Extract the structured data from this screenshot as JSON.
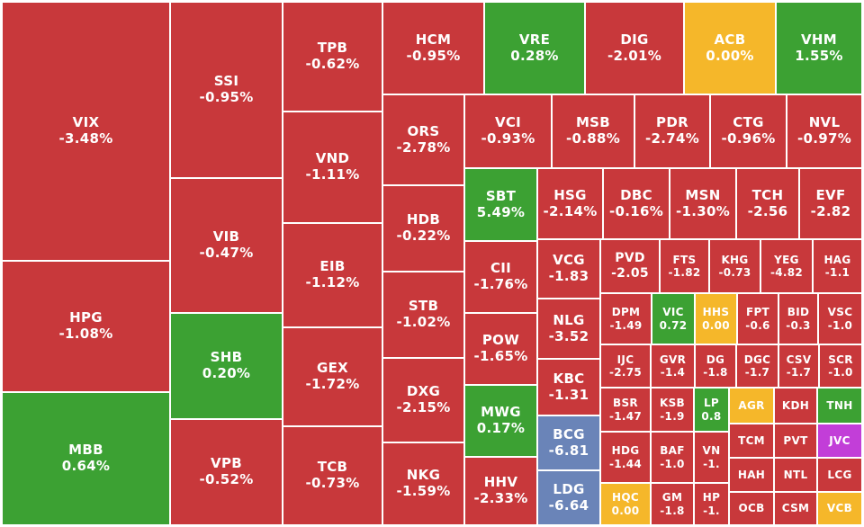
{
  "chart_data": {
    "type": "treemap",
    "colors": {
      "down": "#c8383b",
      "up": "#3ca133",
      "flat": "#f5b72a",
      "floor": "#6a84b8",
      "ceiling": "#c23ed8"
    },
    "tiles": [
      {
        "symbol": "VIX",
        "change": "-3.48%",
        "status": "down"
      },
      {
        "symbol": "HPG",
        "change": "-1.08%",
        "status": "down"
      },
      {
        "symbol": "MBB",
        "change": "0.64%",
        "status": "up"
      },
      {
        "symbol": "SSI",
        "change": "-0.95%",
        "status": "down"
      },
      {
        "symbol": "VIB",
        "change": "-0.47%",
        "status": "down"
      },
      {
        "symbol": "SHB",
        "change": "0.20%",
        "status": "up"
      },
      {
        "symbol": "VPB",
        "change": "-0.52%",
        "status": "down"
      },
      {
        "symbol": "TPB",
        "change": "-0.62%",
        "status": "down"
      },
      {
        "symbol": "VND",
        "change": "-1.11%",
        "status": "down"
      },
      {
        "symbol": "EIB",
        "change": "-1.12%",
        "status": "down"
      },
      {
        "symbol": "GEX",
        "change": "-1.72%",
        "status": "down"
      },
      {
        "symbol": "TCB",
        "change": "-0.73%",
        "status": "down"
      },
      {
        "symbol": "HCM",
        "change": "-0.95%",
        "status": "down"
      },
      {
        "symbol": "VRE",
        "change": "0.28%",
        "status": "up"
      },
      {
        "symbol": "DIG",
        "change": "-2.01%",
        "status": "down"
      },
      {
        "symbol": "ACB",
        "change": "0.00%",
        "status": "flat"
      },
      {
        "symbol": "VHM",
        "change": "1.55%",
        "status": "up"
      },
      {
        "symbol": "ORS",
        "change": "-2.78%",
        "status": "down"
      },
      {
        "symbol": "HDB",
        "change": "-0.22%",
        "status": "down"
      },
      {
        "symbol": "STB",
        "change": "-1.02%",
        "status": "down"
      },
      {
        "symbol": "DXG",
        "change": "-2.15%",
        "status": "down"
      },
      {
        "symbol": "NKG",
        "change": "-1.59%",
        "status": "down"
      },
      {
        "symbol": "VCI",
        "change": "-0.93%",
        "status": "down"
      },
      {
        "symbol": "MSB",
        "change": "-0.88%",
        "status": "down"
      },
      {
        "symbol": "PDR",
        "change": "-2.74%",
        "status": "down"
      },
      {
        "symbol": "CTG",
        "change": "-0.96%",
        "status": "down"
      },
      {
        "symbol": "NVL",
        "change": "-0.97%",
        "status": "down"
      },
      {
        "symbol": "SBT",
        "change": "5.49%",
        "status": "up"
      },
      {
        "symbol": "HSG",
        "change": "-2.14%",
        "status": "down"
      },
      {
        "symbol": "DBC",
        "change": "-0.16%",
        "status": "down"
      },
      {
        "symbol": "MSN",
        "change": "-1.30%",
        "status": "down"
      },
      {
        "symbol": "TCH",
        "change": "-2.56",
        "status": "down"
      },
      {
        "symbol": "EVF",
        "change": "-2.82",
        "status": "down"
      },
      {
        "symbol": "CII",
        "change": "-1.76%",
        "status": "down"
      },
      {
        "symbol": "POW",
        "change": "-1.65%",
        "status": "down"
      },
      {
        "symbol": "MWG",
        "change": "0.17%",
        "status": "up"
      },
      {
        "symbol": "HHV",
        "change": "-2.33%",
        "status": "down"
      },
      {
        "symbol": "VCG",
        "change": "-1.83",
        "status": "down"
      },
      {
        "symbol": "NLG",
        "change": "-3.52",
        "status": "down"
      },
      {
        "symbol": "KBC",
        "change": "-1.31",
        "status": "down"
      },
      {
        "symbol": "BCG",
        "change": "-6.81",
        "status": "floor"
      },
      {
        "symbol": "LDG",
        "change": "-6.64",
        "status": "floor"
      },
      {
        "symbol": "PVD",
        "change": "-2.05",
        "status": "down"
      },
      {
        "symbol": "FTS",
        "change": "-1.82",
        "status": "down"
      },
      {
        "symbol": "KHG",
        "change": "-0.73",
        "status": "down"
      },
      {
        "symbol": "YEG",
        "change": "-4.82",
        "status": "down"
      },
      {
        "symbol": "HAG",
        "change": "-1.1",
        "status": "down"
      },
      {
        "symbol": "DPM",
        "change": "-1.49",
        "status": "down"
      },
      {
        "symbol": "VIC",
        "change": "0.72",
        "status": "up"
      },
      {
        "symbol": "HHS",
        "change": "0.00",
        "status": "flat"
      },
      {
        "symbol": "FPT",
        "change": "-0.6",
        "status": "down"
      },
      {
        "symbol": "BID",
        "change": "-0.3",
        "status": "down"
      },
      {
        "symbol": "VSC",
        "change": "-1.0",
        "status": "down"
      },
      {
        "symbol": "IJC",
        "change": "-2.75",
        "status": "down"
      },
      {
        "symbol": "GVR",
        "change": "-1.4",
        "status": "down"
      },
      {
        "symbol": "DG",
        "change": "-1.8",
        "status": "down"
      },
      {
        "symbol": "DGC",
        "change": "-1.7",
        "status": "down"
      },
      {
        "symbol": "CSV",
        "change": "-1.7",
        "status": "down"
      },
      {
        "symbol": "SCR",
        "change": "-1.0",
        "status": "down"
      },
      {
        "symbol": "BSR",
        "change": "-1.47",
        "status": "down"
      },
      {
        "symbol": "KSB",
        "change": "-1.9",
        "status": "down"
      },
      {
        "symbol": "LP",
        "change": "0.8",
        "status": "up"
      },
      {
        "symbol": "AGR",
        "change": "",
        "status": "flat"
      },
      {
        "symbol": "KDH",
        "change": "",
        "status": "down"
      },
      {
        "symbol": "TNH",
        "change": "",
        "status": "up"
      },
      {
        "symbol": "HDG",
        "change": "-1.44",
        "status": "down"
      },
      {
        "symbol": "BAF",
        "change": "-1.0",
        "status": "down"
      },
      {
        "symbol": "VN",
        "change": "-1.",
        "status": "down"
      },
      {
        "symbol": "TCM",
        "change": "",
        "status": "down"
      },
      {
        "symbol": "PVT",
        "change": "",
        "status": "down"
      },
      {
        "symbol": "JVC",
        "change": "",
        "status": "ceiling"
      },
      {
        "symbol": "HQC",
        "change": "0.00",
        "status": "flat"
      },
      {
        "symbol": "GM",
        "change": "-1.8",
        "status": "down"
      },
      {
        "symbol": "HP",
        "change": "-1.",
        "status": "down"
      },
      {
        "symbol": "HAH",
        "change": "",
        "status": "down"
      },
      {
        "symbol": "NTL",
        "change": "",
        "status": "down"
      },
      {
        "symbol": "LCG",
        "change": "",
        "status": "down"
      },
      {
        "symbol": "OCB",
        "change": "",
        "status": "down"
      },
      {
        "symbol": "CSM",
        "change": "",
        "status": "down"
      },
      {
        "symbol": "VCB",
        "change": "",
        "status": "flat"
      }
    ]
  }
}
